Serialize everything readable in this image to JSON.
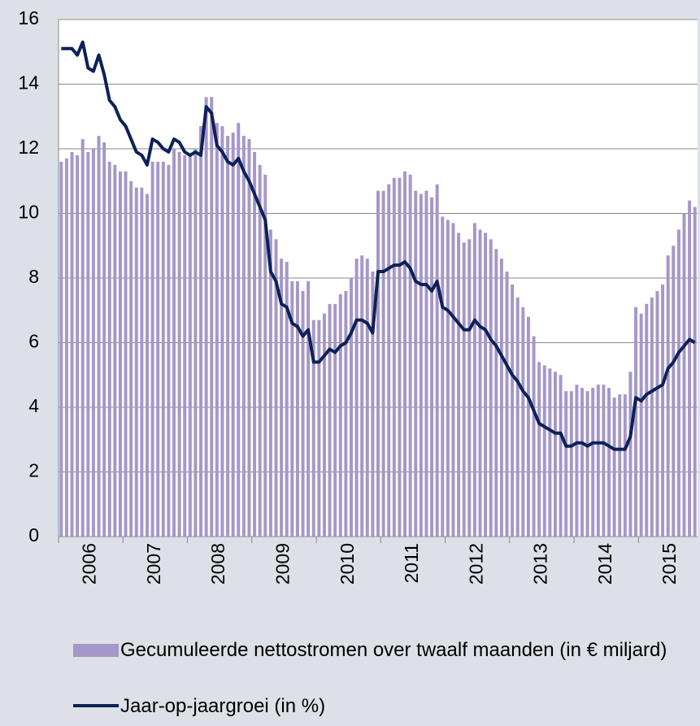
{
  "chart_data": {
    "type": "bar_line",
    "categories": [
      null,
      null,
      null,
      null,
      null,
      null,
      "2006",
      null,
      null,
      null,
      null,
      null,
      null,
      null,
      null,
      null,
      null,
      null,
      "2007",
      null,
      null,
      null,
      null,
      null,
      null,
      null,
      null,
      null,
      null,
      null,
      "2008",
      null,
      null,
      null,
      null,
      null,
      null,
      null,
      null,
      null,
      null,
      null,
      "2009",
      null,
      null,
      null,
      null,
      null,
      null,
      null,
      null,
      null,
      null,
      null,
      "2010",
      null,
      null,
      null,
      null,
      null,
      null,
      null,
      null,
      null,
      null,
      null,
      "2011",
      null,
      null,
      null,
      null,
      null,
      null,
      null,
      null,
      null,
      null,
      null,
      "2012",
      null,
      null,
      null,
      null,
      null,
      null,
      null,
      null,
      null,
      null,
      null,
      "2013",
      null,
      null,
      null,
      null,
      null,
      null,
      null,
      null,
      null,
      null,
      null,
      "2014",
      null,
      null,
      null,
      null,
      null,
      null,
      null,
      null,
      null,
      null,
      null,
      "2015",
      null,
      null,
      null,
      null
    ],
    "series": [
      {
        "name": "Gecumuleerde nettostromen over twaalf maanden (in € miljard)",
        "kind": "bar",
        "color": "#a597c9",
        "values": [
          11.6,
          11.7,
          11.9,
          11.8,
          12.3,
          11.9,
          12.0,
          12.4,
          12.2,
          11.6,
          11.5,
          11.3,
          11.3,
          11.0,
          10.8,
          10.8,
          10.6,
          11.6,
          11.6,
          11.6,
          11.5,
          12.0,
          11.9,
          11.8,
          11.8,
          12.0,
          12.7,
          13.6,
          13.6,
          12.8,
          12.7,
          12.4,
          12.5,
          12.8,
          12.4,
          12.3,
          11.9,
          11.5,
          11.2,
          9.5,
          9.2,
          8.6,
          8.5,
          7.9,
          7.9,
          7.6,
          7.9,
          6.7,
          6.7,
          6.9,
          7.2,
          7.2,
          7.5,
          7.6,
          8.0,
          8.6,
          8.7,
          8.6,
          8.2,
          10.7,
          10.7,
          10.9,
          11.1,
          11.1,
          11.3,
          11.2,
          10.7,
          10.6,
          10.7,
          10.5,
          10.9,
          9.9,
          9.8,
          9.7,
          9.4,
          9.1,
          9.2,
          9.7,
          9.5,
          9.4,
          9.2,
          8.9,
          8.6,
          8.2,
          7.8,
          7.4,
          7.1,
          6.8,
          6.2,
          5.4,
          5.3,
          5.2,
          5.1,
          5.0,
          4.5,
          4.5,
          4.7,
          4.6,
          4.5,
          4.6,
          4.7,
          4.7,
          4.6,
          4.3,
          4.4,
          4.4,
          5.1,
          7.1,
          6.9,
          7.2,
          7.4,
          7.6,
          7.8,
          8.7,
          9.0,
          9.5,
          10.0,
          10.4,
          10.2
        ]
      },
      {
        "name": "Jaar-op-jaargroei (in %)",
        "kind": "line",
        "color": "#0d2158",
        "values": [
          15.1,
          15.1,
          15.1,
          14.9,
          15.3,
          14.5,
          14.4,
          14.9,
          14.3,
          13.5,
          13.3,
          12.9,
          12.7,
          12.3,
          11.9,
          11.8,
          11.5,
          12.3,
          12.2,
          12.0,
          11.9,
          12.3,
          12.2,
          11.9,
          11.8,
          11.9,
          11.8,
          13.3,
          13.1,
          12.1,
          11.9,
          11.6,
          11.5,
          11.7,
          11.3,
          11.0,
          10.6,
          10.2,
          9.8,
          8.2,
          7.9,
          7.2,
          7.1,
          6.6,
          6.5,
          6.2,
          6.4,
          5.4,
          5.4,
          5.6,
          5.8,
          5.7,
          5.9,
          6.0,
          6.3,
          6.7,
          6.7,
          6.6,
          6.3,
          8.2,
          8.2,
          8.3,
          8.4,
          8.4,
          8.5,
          8.3,
          7.9,
          7.8,
          7.8,
          7.6,
          7.9,
          7.1,
          7.0,
          6.8,
          6.6,
          6.4,
          6.4,
          6.7,
          6.5,
          6.4,
          6.1,
          5.9,
          5.6,
          5.3,
          5.0,
          4.8,
          4.5,
          4.3,
          3.9,
          3.5,
          3.4,
          3.3,
          3.2,
          3.2,
          2.8,
          2.8,
          2.9,
          2.9,
          2.8,
          2.9,
          2.9,
          2.9,
          2.8,
          2.7,
          2.7,
          2.7,
          3.1,
          4.3,
          4.2,
          4.4,
          4.5,
          4.6,
          4.7,
          5.2,
          5.4,
          5.7,
          5.9,
          6.1,
          6.0
        ]
      }
    ],
    "ylim": [
      0,
      16
    ],
    "yticks": [
      0,
      2,
      4,
      6,
      8,
      10,
      12,
      14,
      16
    ],
    "grid": true
  }
}
